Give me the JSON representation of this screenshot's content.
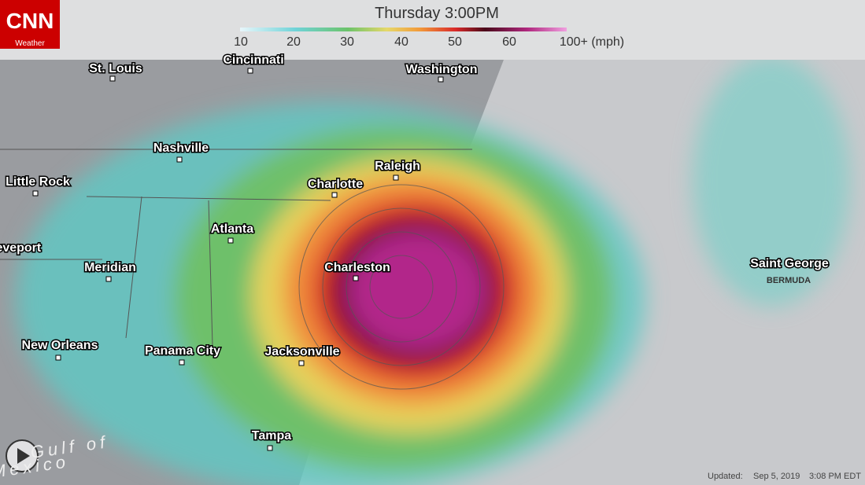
{
  "header": {
    "logo": "CNN",
    "logo_sub": "Weather",
    "title": "Thursday 3:00PM"
  },
  "legend": {
    "labels": [
      10,
      20,
      30,
      40,
      50,
      60,
      "100+ (mph)"
    ]
  },
  "map": {
    "cities": [
      "St. Louis",
      "Cincinnati",
      "Washington",
      "Nashville",
      "Raleigh",
      "Little Rock",
      "Charlotte",
      "Atlanta",
      "Shreveport",
      "Meridian",
      "Charleston",
      "Saint George",
      "New Orleans",
      "Panama City",
      "Jacksonville",
      "Tampa"
    ],
    "regions": [
      "BERMUDA",
      "Gulf of",
      "Mexico"
    ]
  },
  "footer": {
    "label": "Updated:",
    "date": "Sep 5, 2019",
    "time": "3:08 PM EDT"
  }
}
